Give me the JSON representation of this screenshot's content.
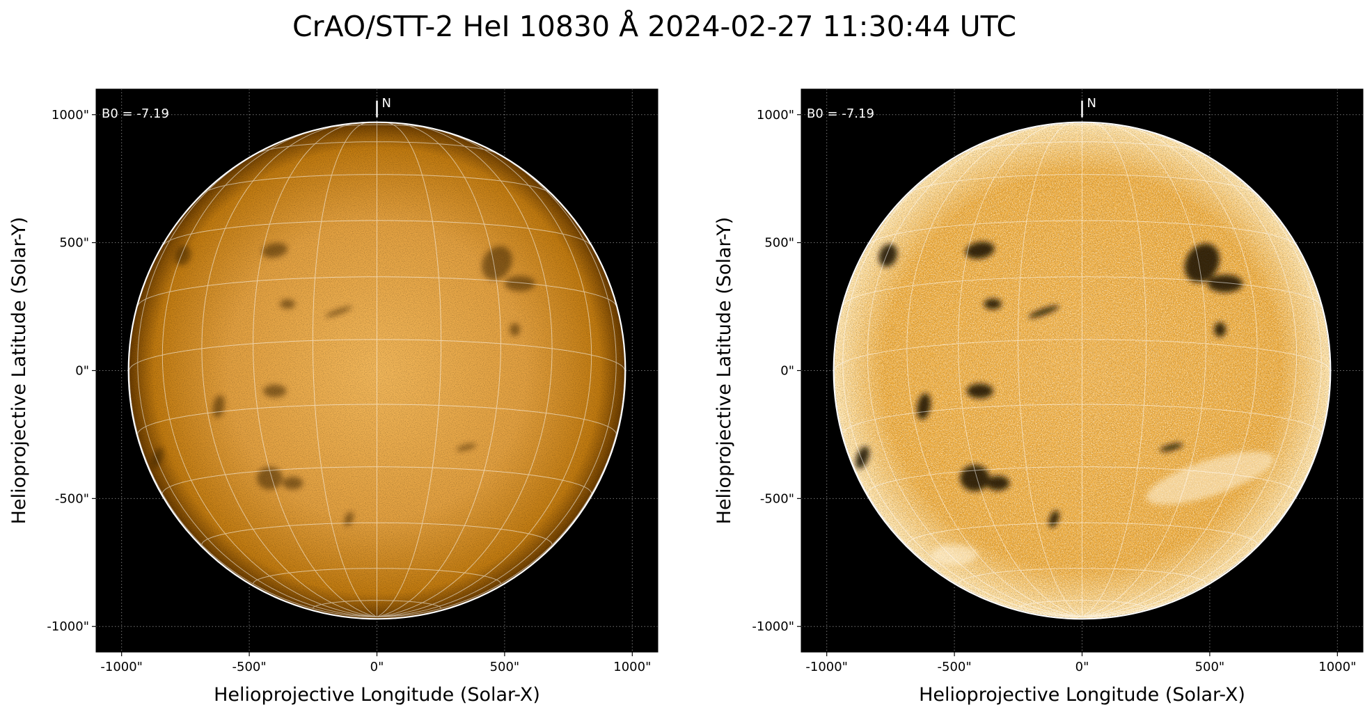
{
  "figure": {
    "title": "CrAO/STT-2 HeI 10830 Å 2024-02-27 11:30:44 UTC",
    "colors": {
      "background": "#000000",
      "disk_light": "#ffe0a0",
      "disk_mid": "#e0900a",
      "disk_dark": "#3a2200",
      "grid": "#ffffff",
      "limb": "#ffffff"
    }
  },
  "panels": [
    {
      "id": "left",
      "variant": "linear",
      "xlabel": "Helioprojective Longitude (Solar-X)",
      "ylabel": "Helioprojective Latitude (Solar-Y)",
      "xlim": [
        -1100,
        1100
      ],
      "ylim": [
        -1100,
        1100
      ],
      "xticks": [
        {
          "value": -1000,
          "label": "-1000\""
        },
        {
          "value": -500,
          "label": "-500\""
        },
        {
          "value": 0,
          "label": "0\""
        },
        {
          "value": 500,
          "label": "500\""
        },
        {
          "value": 1000,
          "label": "1000\""
        }
      ],
      "yticks": [
        {
          "value": 1000,
          "label": "1000\""
        },
        {
          "value": 500,
          "label": "500\""
        },
        {
          "value": 0,
          "label": "0\""
        },
        {
          "value": -500,
          "label": "-500\""
        },
        {
          "value": -1000,
          "label": "-1000\""
        }
      ],
      "b0_text": "B0 = -7.19",
      "north_label": "N"
    },
    {
      "id": "right",
      "variant": "enhanced",
      "xlabel": "Helioprojective Longitude (Solar-X)",
      "ylabel": "Helioprojective Latitude (Solar-Y)",
      "xlim": [
        -1100,
        1100
      ],
      "ylim": [
        -1100,
        1100
      ],
      "xticks": [
        {
          "value": -1000,
          "label": "-1000\""
        },
        {
          "value": -500,
          "label": "-500\""
        },
        {
          "value": 0,
          "label": "0\""
        },
        {
          "value": 500,
          "label": "500\""
        },
        {
          "value": 1000,
          "label": "1000\""
        }
      ],
      "yticks": [
        {
          "value": 1000,
          "label": "1000\""
        },
        {
          "value": 500,
          "label": "500\""
        },
        {
          "value": 0,
          "label": "0\""
        },
        {
          "value": -500,
          "label": "-500\""
        },
        {
          "value": -1000,
          "label": "-1000\""
        }
      ],
      "b0_text": "B0 = -7.19",
      "north_label": "N"
    }
  ]
}
